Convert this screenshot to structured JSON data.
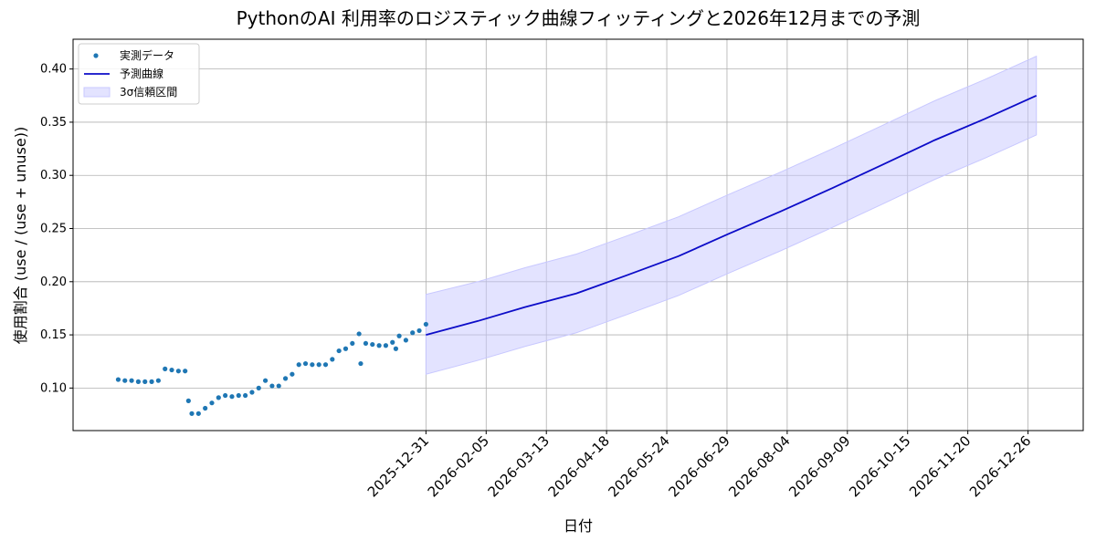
{
  "chart_data": {
    "type": "scatter_forecast",
    "title": "PythonのAI 利用率のロジスティック曲線フィッティングと2026年12月までの予測",
    "x_label": "日付",
    "y_label": "使用割合 (use / (use + unuse))",
    "xlim": [
      "2025-06-03",
      "2027-01-28"
    ],
    "xticks": [
      "2025-12-31",
      "2026-02-05",
      "2026-03-13",
      "2026-04-18",
      "2026-05-24",
      "2026-06-29",
      "2026-08-04",
      "2026-09-09",
      "2026-10-15",
      "2026-11-20",
      "2026-12-26"
    ],
    "ylim": [
      0.06,
      0.428
    ],
    "yticks": [
      {
        "value": 0.1,
        "label": "0.10"
      },
      0.15,
      {
        "value": 0.2,
        "label": "0.20"
      },
      0.25,
      {
        "value": 0.3,
        "label": "0.30"
      },
      0.35,
      {
        "value": 0.4,
        "label": "0.40"
      }
    ],
    "grid": true,
    "legend": "upper left",
    "series": [
      {
        "name": "実測データ",
        "kind": "scatter",
        "color": "#1f77b4",
        "x": [
          "2025-06-30",
          "2025-07-04",
          "2025-07-08",
          "2025-07-12",
          "2025-07-16",
          "2025-07-20",
          "2025-07-24",
          "2025-07-28",
          "2025-08-01",
          "2025-08-05",
          "2025-08-09",
          "2025-08-11",
          "2025-08-13",
          "2025-08-17",
          "2025-08-21",
          "2025-08-25",
          "2025-08-29",
          "2025-09-02",
          "2025-09-06",
          "2025-09-10",
          "2025-09-14",
          "2025-09-18",
          "2025-09-22",
          "2025-09-26",
          "2025-09-30",
          "2025-10-04",
          "2025-10-08",
          "2025-10-12",
          "2025-10-16",
          "2025-10-20",
          "2025-10-24",
          "2025-10-28",
          "2025-11-01",
          "2025-11-05",
          "2025-11-09",
          "2025-11-13",
          "2025-11-17",
          "2025-11-21",
          "2025-11-22",
          "2025-11-25",
          "2025-11-29",
          "2025-12-03",
          "2025-12-07",
          "2025-12-11",
          "2025-12-13",
          "2025-12-15",
          "2025-12-19",
          "2025-12-23",
          "2025-12-27",
          "2025-12-31"
        ],
        "values": [
          0.108,
          0.107,
          0.107,
          0.106,
          0.106,
          0.106,
          0.107,
          0.118,
          0.117,
          0.116,
          0.116,
          0.088,
          0.076,
          0.076,
          0.081,
          0.086,
          0.091,
          0.093,
          0.092,
          0.093,
          0.093,
          0.096,
          0.1,
          0.107,
          0.102,
          0.102,
          0.109,
          0.113,
          0.122,
          0.123,
          0.122,
          0.122,
          0.122,
          0.127,
          0.135,
          0.137,
          0.142,
          0.151,
          0.123,
          0.142,
          0.141,
          0.14,
          0.14,
          0.143,
          0.137,
          0.149,
          0.145,
          0.152,
          0.154,
          0.16
        ]
      },
      {
        "name": "予測曲線",
        "kind": "line",
        "color": "#0c0cc8",
        "x": [
          "2025-12-31",
          "2026-01-31",
          "2026-02-28",
          "2026-03-31",
          "2026-04-30",
          "2026-05-31",
          "2026-06-30",
          "2026-07-31",
          "2026-08-31",
          "2026-09-30",
          "2026-10-31",
          "2026-11-30",
          "2026-12-31"
        ],
        "values": [
          0.15,
          0.163,
          0.176,
          0.189,
          0.206,
          0.224,
          0.245,
          0.266,
          0.288,
          0.31,
          0.333,
          0.353,
          0.375
        ]
      },
      {
        "name": "3σ信頼区間",
        "kind": "band",
        "color": "#c8c8ff",
        "x": [
          "2025-12-31",
          "2026-01-31",
          "2026-02-28",
          "2026-03-31",
          "2026-04-30",
          "2026-05-31",
          "2026-06-30",
          "2026-07-31",
          "2026-08-31",
          "2026-09-30",
          "2026-10-31",
          "2026-11-30",
          "2026-12-31"
        ],
        "lower": [
          0.113,
          0.126,
          0.139,
          0.152,
          0.169,
          0.187,
          0.208,
          0.229,
          0.251,
          0.273,
          0.296,
          0.316,
          0.338
        ],
        "upper": [
          0.188,
          0.2,
          0.213,
          0.226,
          0.243,
          0.261,
          0.282,
          0.303,
          0.325,
          0.347,
          0.37,
          0.39,
          0.412
        ]
      }
    ]
  }
}
